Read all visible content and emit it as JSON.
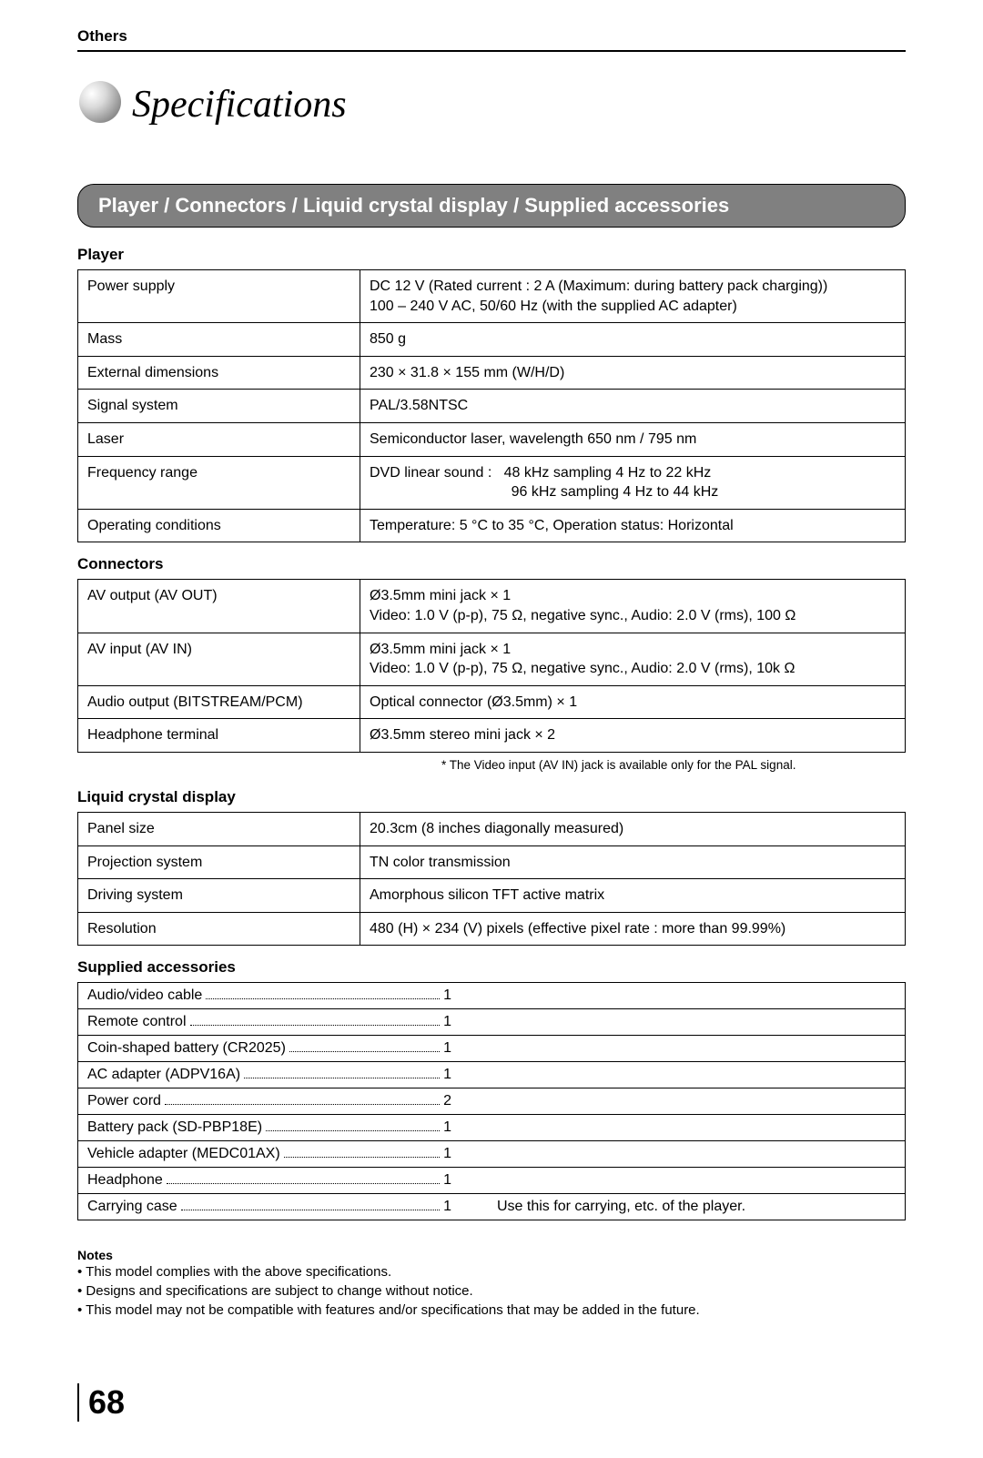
{
  "breadcrumb": "Others",
  "page_title": "Specifications",
  "banner": "Player / Connectors / Liquid crystal display / Supplied accessories",
  "sections": {
    "player": {
      "heading": "Player",
      "rows": [
        {
          "label": "Power supply",
          "value": "DC 12 V (Rated current : 2 A (Maximum: during battery pack charging))\n100 – 240 V AC, 50/60 Hz (with the supplied AC adapter)"
        },
        {
          "label": "Mass",
          "value": "850 g"
        },
        {
          "label": "External dimensions",
          "value": "230 × 31.8 × 155 mm (W/H/D)"
        },
        {
          "label": "Signal system",
          "value": "PAL/3.58NTSC"
        },
        {
          "label": "Laser",
          "value": "Semiconductor laser, wavelength 650 nm / 795 nm"
        },
        {
          "label": "Frequency range",
          "value": "DVD linear sound :   48 kHz sampling 4 Hz to 22 kHz\n                                   96 kHz sampling 4 Hz to 44 kHz"
        },
        {
          "label": "Operating conditions",
          "value": "Temperature: 5 °C to 35 °C, Operation status: Horizontal"
        }
      ]
    },
    "connectors": {
      "heading": "Connectors",
      "rows": [
        {
          "label": "AV output (AV OUT)",
          "value": "Ø3.5mm mini jack × 1\nVideo: 1.0 V (p-p), 75 Ω, negative sync., Audio: 2.0 V (rms), 100 Ω"
        },
        {
          "label": "AV input (AV IN)",
          "value": "Ø3.5mm mini jack × 1\nVideo: 1.0 V (p-p), 75 Ω, negative sync., Audio: 2.0 V (rms), 10k Ω"
        },
        {
          "label": "Audio output (BITSTREAM/PCM)",
          "value": "Optical connector (Ø3.5mm) × 1"
        },
        {
          "label": "Headphone terminal",
          "value": "Ø3.5mm stereo mini jack × 2"
        }
      ],
      "footnote": "* The Video input (AV IN) jack is available only for the PAL signal."
    },
    "lcd": {
      "heading": "Liquid crystal display",
      "rows": [
        {
          "label": "Panel size",
          "value": "20.3cm (8 inches diagonally measured)"
        },
        {
          "label": "Projection system",
          "value": "TN color transmission"
        },
        {
          "label": "Driving system",
          "value": "Amorphous silicon TFT active matrix"
        },
        {
          "label": "Resolution",
          "value": "480 (H) × 234 (V) pixels (effective pixel rate : more than 99.99%)"
        }
      ]
    },
    "accessories": {
      "heading": "Supplied accessories",
      "rows": [
        {
          "item": "Audio/video cable",
          "qty": "1",
          "extra": ""
        },
        {
          "item": "Remote control",
          "qty": "1",
          "extra": ""
        },
        {
          "item": "Coin-shaped battery (CR2025)",
          "qty": "1",
          "extra": ""
        },
        {
          "item": "AC adapter (ADPV16A)",
          "qty": "1",
          "extra": ""
        },
        {
          "item": "Power cord",
          "qty": "2",
          "extra": ""
        },
        {
          "item": "Battery pack (SD-PBP18E)",
          "qty": "1",
          "extra": ""
        },
        {
          "item": "Vehicle adapter (MEDC01AX)",
          "qty": "1",
          "extra": ""
        },
        {
          "item": "Headphone",
          "qty": "1",
          "extra": ""
        },
        {
          "item": "Carrying case",
          "qty": "1",
          "extra": "Use this for carrying, etc. of the player."
        }
      ]
    }
  },
  "notes": {
    "heading": "Notes",
    "items": [
      "This model complies with the above specifications.",
      "Designs and specifications are subject to change without notice.",
      "This model may not be compatible with features and/or specifications that may be added in the future."
    ]
  },
  "page_number": "68",
  "colors": {
    "banner_bg": "#808080",
    "banner_fg": "#ffffff",
    "text": "#000000",
    "border": "#000000"
  }
}
